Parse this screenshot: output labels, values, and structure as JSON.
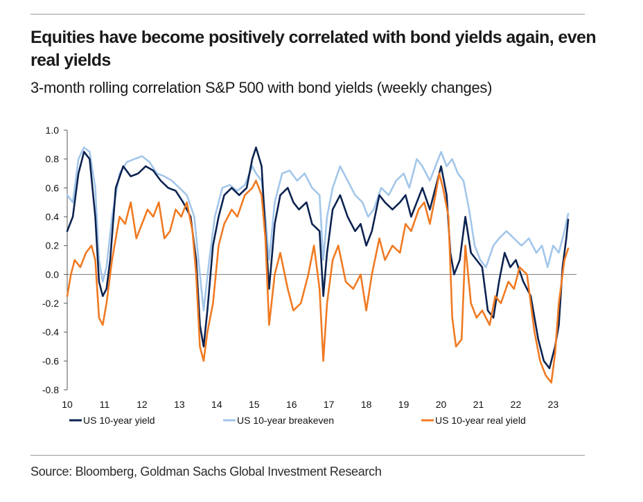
{
  "header": {
    "title": "Equities have become positively correlated with bond yields again, even real yields",
    "subtitle": "3-month rolling correlation S&P 500 with bond yields (weekly changes)"
  },
  "footer": {
    "source": "Source: Bloomberg, Goldman Sachs Global Investment Research"
  },
  "chart_data": {
    "type": "line",
    "ylim": [
      -0.8,
      1.0
    ],
    "xlim": [
      10,
      23.4
    ],
    "grid": false,
    "legend_position": "bottom",
    "x_tick_labels": [
      "10",
      "11",
      "12",
      "13",
      "14",
      "15",
      "16",
      "17",
      "18",
      "19",
      "20",
      "21",
      "22",
      "23"
    ],
    "y_tick_labels": [
      "1.0",
      "0.8",
      "0.6",
      "0.4",
      "0.2",
      "0.0",
      "-0.2",
      "-0.4",
      "-0.6",
      "-0.8"
    ],
    "y_ticks": [
      1.0,
      0.8,
      0.6,
      0.4,
      0.2,
      0.0,
      -0.2,
      -0.4,
      -0.6,
      -0.8
    ],
    "series": [
      {
        "name": "US 10-year yield",
        "color": "#0b2250",
        "points": [
          [
            10.0,
            0.3
          ],
          [
            10.15,
            0.4
          ],
          [
            10.3,
            0.7
          ],
          [
            10.45,
            0.85
          ],
          [
            10.6,
            0.8
          ],
          [
            10.75,
            0.4
          ],
          [
            10.85,
            -0.05
          ],
          [
            10.95,
            -0.15
          ],
          [
            11.05,
            -0.1
          ],
          [
            11.15,
            0.1
          ],
          [
            11.3,
            0.6
          ],
          [
            11.5,
            0.75
          ],
          [
            11.7,
            0.68
          ],
          [
            11.9,
            0.7
          ],
          [
            12.1,
            0.75
          ],
          [
            12.3,
            0.72
          ],
          [
            12.5,
            0.65
          ],
          [
            12.7,
            0.6
          ],
          [
            12.9,
            0.58
          ],
          [
            13.1,
            0.5
          ],
          [
            13.3,
            0.4
          ],
          [
            13.45,
            0.1
          ],
          [
            13.55,
            -0.35
          ],
          [
            13.65,
            -0.5
          ],
          [
            13.75,
            -0.25
          ],
          [
            13.9,
            0.2
          ],
          [
            14.05,
            0.4
          ],
          [
            14.2,
            0.55
          ],
          [
            14.4,
            0.6
          ],
          [
            14.6,
            0.55
          ],
          [
            14.8,
            0.6
          ],
          [
            14.95,
            0.8
          ],
          [
            15.05,
            0.88
          ],
          [
            15.2,
            0.75
          ],
          [
            15.3,
            0.3
          ],
          [
            15.4,
            -0.1
          ],
          [
            15.55,
            0.35
          ],
          [
            15.7,
            0.55
          ],
          [
            15.9,
            0.6
          ],
          [
            16.05,
            0.5
          ],
          [
            16.2,
            0.45
          ],
          [
            16.4,
            0.5
          ],
          [
            16.55,
            0.35
          ],
          [
            16.75,
            0.3
          ],
          [
            16.85,
            -0.15
          ],
          [
            16.95,
            0.15
          ],
          [
            17.1,
            0.45
          ],
          [
            17.3,
            0.55
          ],
          [
            17.5,
            0.4
          ],
          [
            17.7,
            0.3
          ],
          [
            17.85,
            0.35
          ],
          [
            18.0,
            0.2
          ],
          [
            18.15,
            0.3
          ],
          [
            18.35,
            0.55
          ],
          [
            18.5,
            0.5
          ],
          [
            18.7,
            0.45
          ],
          [
            18.9,
            0.5
          ],
          [
            19.05,
            0.55
          ],
          [
            19.2,
            0.4
          ],
          [
            19.35,
            0.5
          ],
          [
            19.5,
            0.6
          ],
          [
            19.7,
            0.45
          ],
          [
            19.85,
            0.6
          ],
          [
            20.0,
            0.75
          ],
          [
            20.15,
            0.55
          ],
          [
            20.25,
            0.15
          ],
          [
            20.35,
            0.0
          ],
          [
            20.5,
            0.1
          ],
          [
            20.65,
            0.4
          ],
          [
            20.8,
            0.15
          ],
          [
            20.95,
            0.1
          ],
          [
            21.1,
            0.05
          ],
          [
            21.25,
            -0.25
          ],
          [
            21.4,
            -0.3
          ],
          [
            21.55,
            -0.05
          ],
          [
            21.7,
            0.15
          ],
          [
            21.85,
            0.05
          ],
          [
            22.0,
            0.1
          ],
          [
            22.2,
            -0.05
          ],
          [
            22.4,
            -0.15
          ],
          [
            22.6,
            -0.45
          ],
          [
            22.75,
            -0.6
          ],
          [
            22.9,
            -0.65
          ],
          [
            23.05,
            -0.5
          ],
          [
            23.15,
            -0.35
          ],
          [
            23.25,
            0.05
          ],
          [
            23.35,
            0.25
          ],
          [
            23.4,
            0.38
          ]
        ]
      },
      {
        "name": "US 10-year breakeven",
        "color": "#a3c6ea",
        "points": [
          [
            10.0,
            0.55
          ],
          [
            10.15,
            0.5
          ],
          [
            10.3,
            0.8
          ],
          [
            10.45,
            0.88
          ],
          [
            10.6,
            0.85
          ],
          [
            10.75,
            0.6
          ],
          [
            10.85,
            0.1
          ],
          [
            10.95,
            -0.05
          ],
          [
            11.05,
            0.05
          ],
          [
            11.2,
            0.4
          ],
          [
            11.4,
            0.7
          ],
          [
            11.6,
            0.78
          ],
          [
            11.8,
            0.8
          ],
          [
            12.0,
            0.82
          ],
          [
            12.2,
            0.78
          ],
          [
            12.4,
            0.7
          ],
          [
            12.6,
            0.68
          ],
          [
            12.8,
            0.65
          ],
          [
            13.0,
            0.6
          ],
          [
            13.2,
            0.55
          ],
          [
            13.4,
            0.4
          ],
          [
            13.55,
            0.0
          ],
          [
            13.65,
            -0.25
          ],
          [
            13.8,
            0.1
          ],
          [
            13.95,
            0.4
          ],
          [
            14.15,
            0.6
          ],
          [
            14.35,
            0.62
          ],
          [
            14.55,
            0.58
          ],
          [
            14.75,
            0.62
          ],
          [
            14.95,
            0.75
          ],
          [
            15.05,
            0.7
          ],
          [
            15.2,
            0.65
          ],
          [
            15.3,
            0.4
          ],
          [
            15.4,
            0.1
          ],
          [
            15.55,
            0.5
          ],
          [
            15.75,
            0.7
          ],
          [
            15.95,
            0.72
          ],
          [
            16.15,
            0.65
          ],
          [
            16.35,
            0.7
          ],
          [
            16.55,
            0.6
          ],
          [
            16.75,
            0.55
          ],
          [
            16.85,
            0.1
          ],
          [
            16.95,
            0.4
          ],
          [
            17.1,
            0.6
          ],
          [
            17.3,
            0.75
          ],
          [
            17.5,
            0.65
          ],
          [
            17.7,
            0.55
          ],
          [
            17.9,
            0.5
          ],
          [
            18.05,
            0.4
          ],
          [
            18.2,
            0.45
          ],
          [
            18.4,
            0.6
          ],
          [
            18.6,
            0.55
          ],
          [
            18.8,
            0.65
          ],
          [
            19.0,
            0.7
          ],
          [
            19.15,
            0.6
          ],
          [
            19.35,
            0.8
          ],
          [
            19.5,
            0.75
          ],
          [
            19.7,
            0.65
          ],
          [
            19.85,
            0.75
          ],
          [
            20.0,
            0.85
          ],
          [
            20.15,
            0.75
          ],
          [
            20.3,
            0.8
          ],
          [
            20.45,
            0.7
          ],
          [
            20.6,
            0.65
          ],
          [
            20.75,
            0.45
          ],
          [
            20.9,
            0.2
          ],
          [
            21.05,
            0.1
          ],
          [
            21.2,
            0.05
          ],
          [
            21.4,
            0.2
          ],
          [
            21.55,
            0.25
          ],
          [
            21.75,
            0.3
          ],
          [
            21.95,
            0.25
          ],
          [
            22.15,
            0.2
          ],
          [
            22.35,
            0.25
          ],
          [
            22.55,
            0.15
          ],
          [
            22.7,
            0.2
          ],
          [
            22.85,
            0.05
          ],
          [
            23.0,
            0.2
          ],
          [
            23.15,
            0.15
          ],
          [
            23.3,
            0.3
          ],
          [
            23.4,
            0.42
          ]
        ]
      },
      {
        "name": "US 10-year real yield",
        "color": "#f07a22",
        "points": [
          [
            10.0,
            -0.15
          ],
          [
            10.1,
            0.0
          ],
          [
            10.2,
            0.1
          ],
          [
            10.35,
            0.05
          ],
          [
            10.5,
            0.15
          ],
          [
            10.65,
            0.2
          ],
          [
            10.75,
            0.1
          ],
          [
            10.85,
            -0.3
          ],
          [
            10.95,
            -0.35
          ],
          [
            11.05,
            -0.2
          ],
          [
            11.2,
            0.1
          ],
          [
            11.4,
            0.4
          ],
          [
            11.55,
            0.35
          ],
          [
            11.7,
            0.5
          ],
          [
            11.85,
            0.25
          ],
          [
            12.0,
            0.35
          ],
          [
            12.15,
            0.45
          ],
          [
            12.3,
            0.4
          ],
          [
            12.45,
            0.5
          ],
          [
            12.6,
            0.25
          ],
          [
            12.75,
            0.3
          ],
          [
            12.9,
            0.45
          ],
          [
            13.05,
            0.4
          ],
          [
            13.2,
            0.5
          ],
          [
            13.35,
            0.3
          ],
          [
            13.45,
            0.0
          ],
          [
            13.55,
            -0.5
          ],
          [
            13.65,
            -0.6
          ],
          [
            13.75,
            -0.4
          ],
          [
            13.9,
            -0.2
          ],
          [
            14.05,
            0.2
          ],
          [
            14.2,
            0.35
          ],
          [
            14.4,
            0.45
          ],
          [
            14.55,
            0.4
          ],
          [
            14.75,
            0.55
          ],
          [
            14.95,
            0.6
          ],
          [
            15.05,
            0.65
          ],
          [
            15.2,
            0.55
          ],
          [
            15.3,
            0.25
          ],
          [
            15.4,
            -0.35
          ],
          [
            15.55,
            0.0
          ],
          [
            15.7,
            0.15
          ],
          [
            15.9,
            -0.1
          ],
          [
            16.05,
            -0.25
          ],
          [
            16.25,
            -0.2
          ],
          [
            16.45,
            0.0
          ],
          [
            16.6,
            0.2
          ],
          [
            16.75,
            -0.1
          ],
          [
            16.85,
            -0.6
          ],
          [
            16.95,
            -0.2
          ],
          [
            17.1,
            0.1
          ],
          [
            17.25,
            0.2
          ],
          [
            17.45,
            -0.05
          ],
          [
            17.65,
            -0.1
          ],
          [
            17.85,
            0.0
          ],
          [
            18.0,
            -0.25
          ],
          [
            18.15,
            0.0
          ],
          [
            18.35,
            0.25
          ],
          [
            18.5,
            0.1
          ],
          [
            18.7,
            0.2
          ],
          [
            18.9,
            0.15
          ],
          [
            19.05,
            0.35
          ],
          [
            19.2,
            0.3
          ],
          [
            19.4,
            0.45
          ],
          [
            19.55,
            0.5
          ],
          [
            19.7,
            0.35
          ],
          [
            19.85,
            0.55
          ],
          [
            19.95,
            0.7
          ],
          [
            20.05,
            0.6
          ],
          [
            20.2,
            0.4
          ],
          [
            20.3,
            -0.3
          ],
          [
            20.4,
            -0.5
          ],
          [
            20.55,
            -0.45
          ],
          [
            20.65,
            0.2
          ],
          [
            20.8,
            -0.2
          ],
          [
            20.95,
            -0.3
          ],
          [
            21.1,
            -0.25
          ],
          [
            21.3,
            -0.35
          ],
          [
            21.45,
            -0.15
          ],
          [
            21.6,
            -0.2
          ],
          [
            21.8,
            -0.05
          ],
          [
            21.95,
            -0.1
          ],
          [
            22.1,
            0.05
          ],
          [
            22.3,
            0.0
          ],
          [
            22.5,
            -0.4
          ],
          [
            22.65,
            -0.6
          ],
          [
            22.8,
            -0.7
          ],
          [
            22.95,
            -0.75
          ],
          [
            23.05,
            -0.55
          ],
          [
            23.15,
            -0.2
          ],
          [
            23.3,
            0.1
          ],
          [
            23.4,
            0.18
          ]
        ]
      }
    ]
  }
}
